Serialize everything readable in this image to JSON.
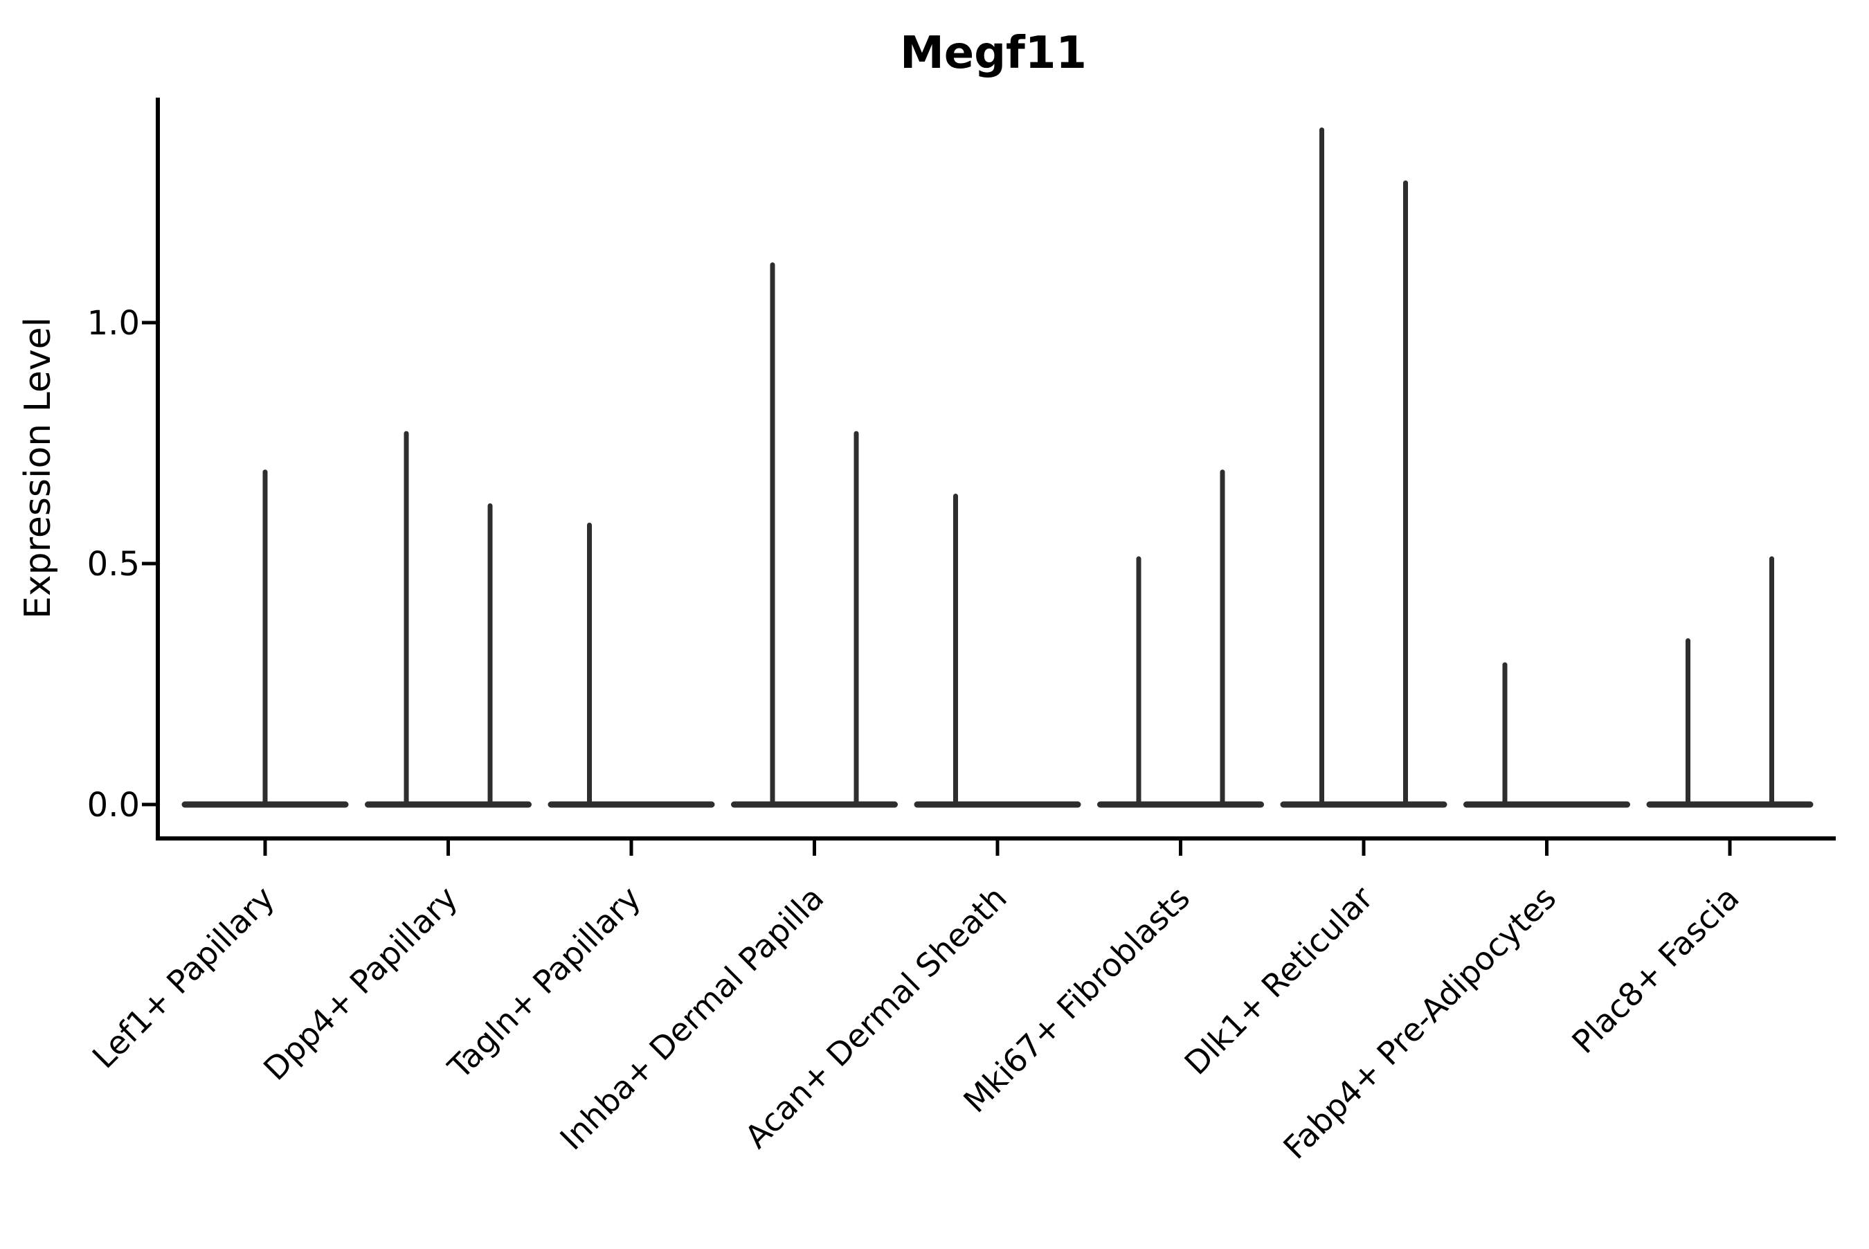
{
  "title": "Megf11",
  "chart_data": {
    "type": "violin",
    "title": "Megf11",
    "xlabel": "",
    "ylabel": "Expression Level",
    "ylim": [
      -0.07,
      1.47
    ],
    "yticks": [
      0.0,
      0.5,
      1.0
    ],
    "ytick_labels": [
      "0.0",
      "0.5",
      "1.0"
    ],
    "grid": false,
    "legend": null,
    "categories": [
      "Lef1+ Papillary",
      "Dpp4+ Papillary",
      "Tagln+ Papillary",
      "Inhba+ Dermal Papilla",
      "Acan+ Dermal Sheath",
      "Mki67+ Fibroblasts",
      "Dlk1+ Reticular",
      "Fabp4+ Pre-Adipocytes",
      "Plac8+ Fascia"
    ],
    "baseline_value": 0.0,
    "violins": [
      {
        "category": "Lef1+ Papillary",
        "spikes": [
          {
            "position": "center",
            "max": 0.69
          }
        ]
      },
      {
        "category": "Dpp4+ Papillary",
        "spikes": [
          {
            "position": "left",
            "max": 0.77
          },
          {
            "position": "right",
            "max": 0.62
          }
        ]
      },
      {
        "category": "Tagln+ Papillary",
        "spikes": [
          {
            "position": "left",
            "max": 0.58
          }
        ]
      },
      {
        "category": "Inhba+ Dermal Papilla",
        "spikes": [
          {
            "position": "left",
            "max": 1.12
          },
          {
            "position": "right",
            "max": 0.77
          }
        ]
      },
      {
        "category": "Acan+ Dermal Sheath",
        "spikes": [
          {
            "position": "left",
            "max": 0.64
          }
        ]
      },
      {
        "category": "Mki67+ Fibroblasts",
        "spikes": [
          {
            "position": "left",
            "max": 0.51
          },
          {
            "position": "right",
            "max": 0.69
          }
        ]
      },
      {
        "category": "Dlk1+ Reticular",
        "spikes": [
          {
            "position": "left",
            "max": 1.4
          },
          {
            "position": "right",
            "max": 1.29
          }
        ]
      },
      {
        "category": "Fabp4+ Pre-Adipocytes",
        "spikes": [
          {
            "position": "left",
            "max": 0.29
          }
        ]
      },
      {
        "category": "Plac8+ Fascia",
        "spikes": [
          {
            "position": "left",
            "max": 0.34
          },
          {
            "position": "right",
            "max": 0.51
          }
        ]
      }
    ],
    "colors": {
      "violin": "#2e2e2e",
      "axis": "#000000",
      "text": "#000000",
      "background": "#ffffff"
    }
  }
}
